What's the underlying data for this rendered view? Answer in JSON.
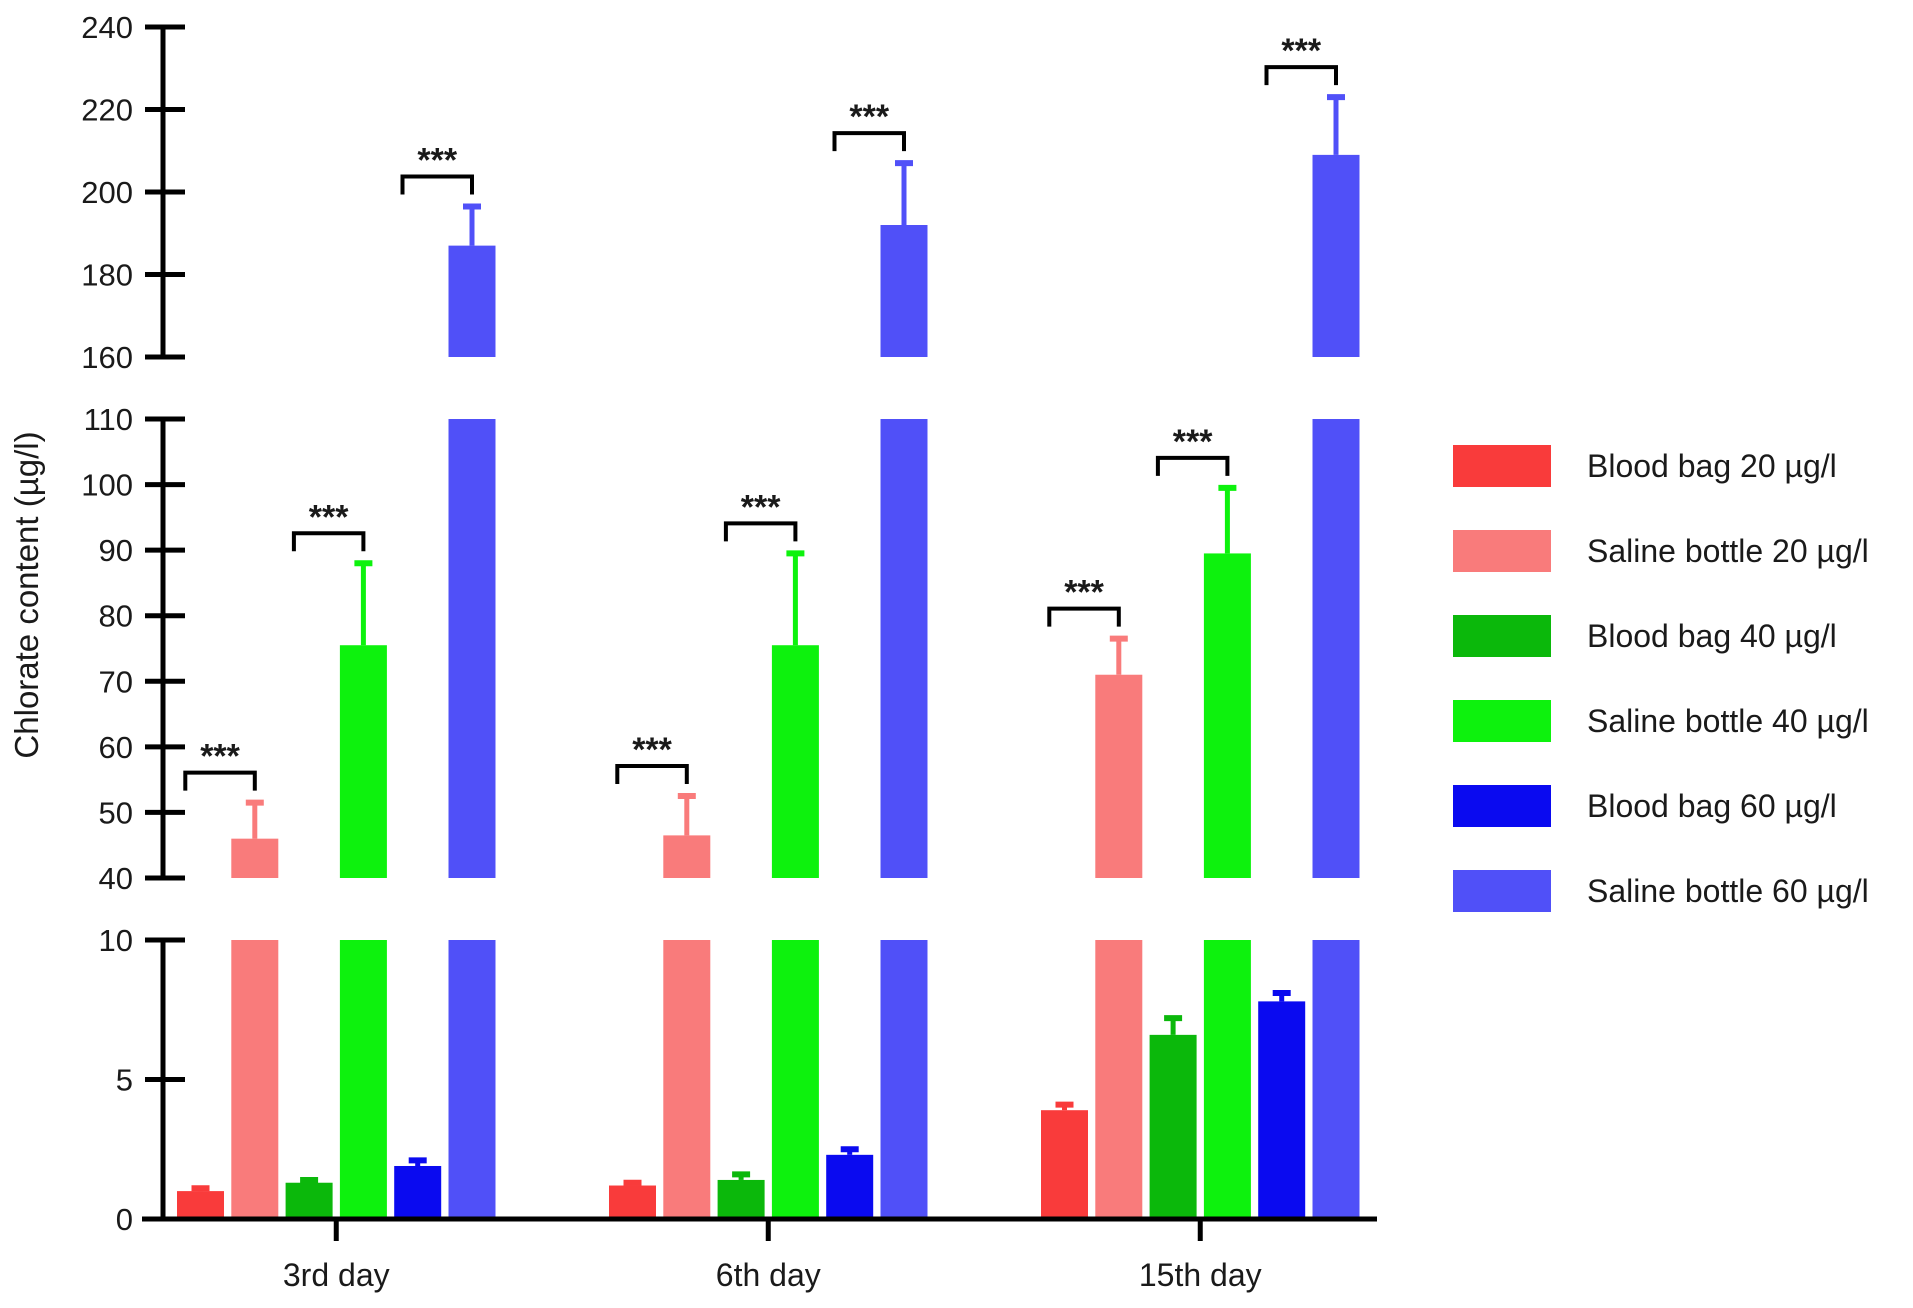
{
  "chart_data": {
    "type": "bar",
    "title": "",
    "xlabel": "",
    "ylabel": "Chlorate content (µg/l)",
    "categories": [
      "3rd day",
      "6th day",
      "15th day"
    ],
    "y_axis_segments": [
      {
        "range": [
          0,
          10
        ],
        "ticks": [
          "0",
          "5",
          "10"
        ]
      },
      {
        "range": [
          40,
          110
        ],
        "ticks": [
          "40",
          "50",
          "60",
          "70",
          "80",
          "90",
          "100",
          "110"
        ]
      },
      {
        "range": [
          160,
          240
        ],
        "ticks": [
          "160",
          "180",
          "200",
          "220",
          "240"
        ]
      }
    ],
    "series": [
      {
        "name": "Blood bag 20 µg/l",
        "color": "#f93b3b",
        "values": [
          1.0,
          1.2,
          3.9
        ],
        "errors": [
          0.1,
          0.1,
          0.2
        ]
      },
      {
        "name": "Saline bottle 20 µg/l",
        "color": "#f97b7b",
        "values": [
          46,
          46.5,
          71
        ],
        "errors": [
          5.5,
          6,
          5.5
        ]
      },
      {
        "name": "Blood bag 40 µg/l",
        "color": "#0bb80b",
        "values": [
          1.3,
          1.4,
          6.6
        ],
        "errors": [
          0.1,
          0.2,
          0.6
        ]
      },
      {
        "name": "Saline bottle 40 µg/l",
        "color": "#0df20d",
        "values": [
          75.5,
          75.5,
          89.5
        ],
        "errors": [
          12.5,
          14,
          10
        ]
      },
      {
        "name": "Blood bag 60 µg/l",
        "color": "#0a0af0",
        "values": [
          1.9,
          2.3,
          7.8
        ],
        "errors": [
          0.2,
          0.2,
          0.3
        ]
      },
      {
        "name": "Saline bottle 60 µg/l",
        "color": "#5050f8",
        "values": [
          187,
          192,
          209
        ],
        "errors": [
          9.5,
          15,
          14
        ]
      }
    ],
    "annotations": {
      "significance_label": "***",
      "marked_series": [
        "Saline bottle 20 µg/l",
        "Saline bottle 40 µg/l",
        "Saline bottle 60 µg/l"
      ]
    },
    "legend": "right",
    "grid": false
  }
}
